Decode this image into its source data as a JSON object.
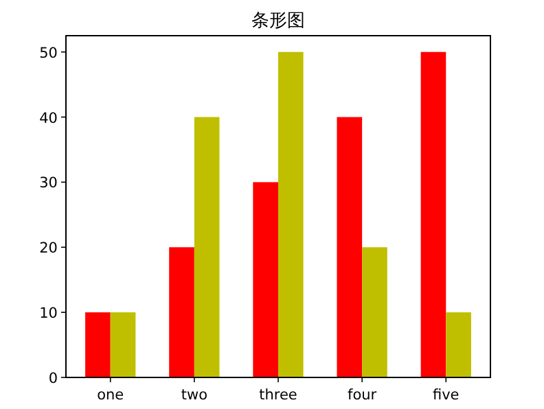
{
  "chart_data": {
    "type": "bar",
    "title": "条形图",
    "categories": [
      "one",
      "two",
      "three",
      "four",
      "five"
    ],
    "series": [
      {
        "color": "#ff0000",
        "values": [
          10,
          20,
          30,
          40,
          50
        ]
      },
      {
        "color": "#bfbf00",
        "values": [
          10,
          40,
          50,
          20,
          10
        ]
      }
    ],
    "ylim": [
      0,
      52.5
    ],
    "yticks": [
      0,
      10,
      20,
      30,
      40,
      50
    ],
    "grid": false
  }
}
